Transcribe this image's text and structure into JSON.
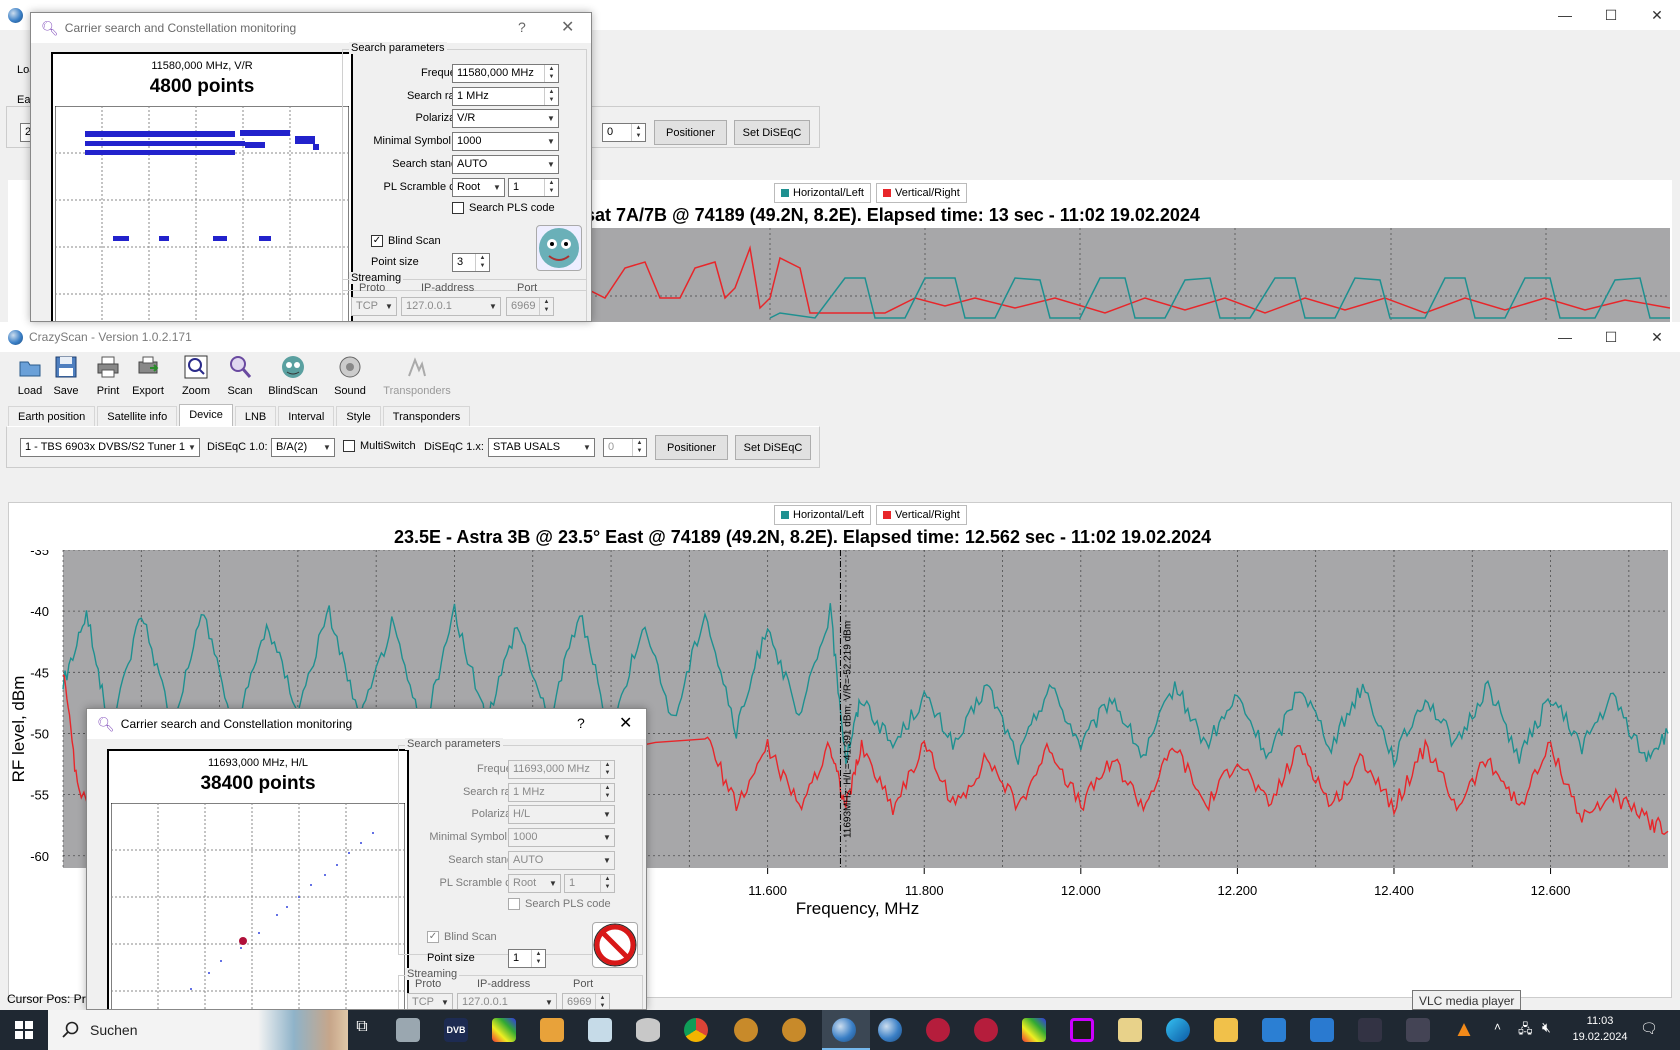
{
  "main_window": {
    "title": "CrazyScan - Version 1.0.2.171",
    "toolbar": [
      {
        "label": "Load",
        "icon": "load-icon"
      },
      {
        "label": "Save",
        "icon": "save-icon"
      },
      {
        "label": "Print",
        "icon": "print-icon"
      },
      {
        "label": "Export",
        "icon": "export-icon"
      },
      {
        "label": "Zoom",
        "icon": "zoom-icon"
      },
      {
        "label": "Scan",
        "icon": "scan-icon"
      },
      {
        "label": "BlindScan",
        "icon": "blindscan-icon"
      },
      {
        "label": "Sound",
        "icon": "sound-icon"
      },
      {
        "label": "Transponders",
        "icon": "transponders-icon",
        "disabled": true
      }
    ],
    "tabs": [
      "Earth position",
      "Satellite info",
      "Device",
      "LNB",
      "Interval",
      "Style",
      "Transponders"
    ],
    "active_tab": "Device",
    "device": {
      "tuner": "1 - TBS 6903x DVBS/S2 Tuner 1",
      "diseqc10_label": "DiSEqC 1.0:",
      "diseqc10_value": "B/A(2)",
      "multiswitch_label": "MultiSwitch",
      "diseqc1x_label": "DiSEqC 1.x:",
      "diseqc1x_value": "STAB USALS",
      "spin_value": "0",
      "positioner_label": "Positioner",
      "set_diseqc_label": "Set DiSEqC"
    },
    "legend": {
      "h": "Horizontal/Left",
      "v": "Vertical/Right",
      "h_color": "#1e9090",
      "v_color": "#e8262a"
    },
    "chart_title": "23.5E - Astra 3B @ 23.5° East @ 74189 (49.2N, 8.2E). Elapsed time: 12.562 sec - 11:02 19.02.2024",
    "status": "Cursor Pos: Pre"
  },
  "chart_data": {
    "type": "line",
    "title": "23.5E - Astra 3B @ 23.5° East @ 74189 (49.2N, 8.2E). Elapsed time: 12.562 sec - 11:02 19.02.2024",
    "xlabel": "Frequency, MHz",
    "ylabel": "RF level, dBm",
    "xlim": [
      10700,
      12750
    ],
    "ylim": [
      -61,
      -35
    ],
    "yticks": [
      -35,
      -40,
      -45,
      -50,
      -55,
      -60
    ],
    "xticks": [
      "11.600",
      "11.800",
      "12.000",
      "12.200",
      "12.400",
      "12.600"
    ],
    "xtick_values": [
      11600,
      11800,
      12000,
      12200,
      12400,
      12600
    ],
    "grid": true,
    "cursor_freq": 11693,
    "cursor_label": "11693MHz:  H/L=-41.391 dBm,  V/R=-52.219 dBm",
    "series": [
      {
        "name": "Horizontal/Left",
        "color": "#1e9090",
        "x": [
          10700,
          10730,
          10760,
          10800,
          10840,
          10880,
          10920,
          10960,
          11000,
          11040,
          11080,
          11120,
          11160,
          11200,
          11240,
          11280,
          11320,
          11360,
          11400,
          11440,
          11480,
          11520,
          11560,
          11600,
          11640,
          11680,
          11700,
          11720,
          11760,
          11800,
          11840,
          11880,
          11920,
          11960,
          12000,
          12040,
          12080,
          12120,
          12160,
          12200,
          12240,
          12280,
          12320,
          12360,
          12400,
          12440,
          12480,
          12520,
          12560,
          12600,
          12640,
          12680,
          12720,
          12750
        ],
        "y": [
          -46,
          -40,
          -50,
          -40,
          -49,
          -40,
          -50,
          -41,
          -48,
          -40,
          -49,
          -41,
          -50,
          -40,
          -49,
          -41,
          -49,
          -40,
          -50,
          -41,
          -49,
          -40,
          -50,
          -41,
          -49,
          -40,
          -52,
          -47,
          -51,
          -47,
          -51,
          -46,
          -52,
          -46,
          -51,
          -47,
          -52,
          -46,
          -51,
          -47,
          -52,
          -46,
          -51,
          -46,
          -52,
          -47,
          -51,
          -46,
          -52,
          -47,
          -51,
          -47,
          -52,
          -50
        ]
      },
      {
        "name": "Vertical/Right",
        "color": "#e8262a",
        "x": [
          10700,
          10720,
          10760,
          11520,
          11560,
          11600,
          11640,
          11680,
          11700,
          11720,
          11760,
          11800,
          11840,
          11880,
          11920,
          11960,
          12000,
          12040,
          12080,
          12120,
          12160,
          12200,
          12240,
          12280,
          12320,
          12360,
          12400,
          12440,
          12480,
          12520,
          12560,
          12600,
          12640,
          12680,
          12720,
          12750
        ],
        "y": [
          -45,
          -55,
          -58,
          -50,
          -56,
          -51,
          -56,
          -51,
          -56,
          -51,
          -56,
          -51,
          -56,
          -52,
          -56,
          -51,
          -56,
          -52,
          -56,
          -51,
          -56,
          -52,
          -56,
          -51,
          -56,
          -52,
          -56,
          -51,
          -56,
          -52,
          -56,
          -51,
          -57,
          -55,
          -57,
          -58
        ]
      }
    ]
  },
  "bg_window": {
    "chart_title_partial": "sat 7A/7B @ 74189 (49.2N, 8.2E). Elapsed time: 13 sec - 11:02 19.02.2024",
    "partial_label_1": "Loa",
    "partial_label_2": "Ea",
    "partial_label_3": "2",
    "spin_value": "0",
    "positioner_label": "Positioner",
    "set_diseqc_label": "Set DiSEqC"
  },
  "dialog_top": {
    "title": "Carrier search and Constellation monitoring",
    "help": "?",
    "freq_pol": "11580,000 MHz, V/R",
    "points": "4800 points",
    "group_title": "Search parameters",
    "fields": [
      {
        "label": "Frequency",
        "value": "11580,000 MHz",
        "kind": "spin"
      },
      {
        "label": "Search range",
        "value": "1 MHz",
        "kind": "spin"
      },
      {
        "label": "Polarization",
        "value": "V/R",
        "kind": "combo"
      },
      {
        "label": "Minimal Symbol rate",
        "value": "1000",
        "kind": "combo"
      },
      {
        "label": "Search standard",
        "value": "AUTO",
        "kind": "combo"
      }
    ],
    "pls_label": "PL Scramble code",
    "pls_mode": "Root",
    "pls_value": "1",
    "search_pls": "Search PLS code",
    "blind_scan": "Blind Scan",
    "point_size_label": "Point size",
    "point_size": "3",
    "streaming_title": "Streaming",
    "proto_label": "Proto",
    "ip_label": "IP-address",
    "port_label": "Port",
    "proto": "TCP",
    "ip": "127.0.0.1",
    "port": "6969"
  },
  "dialog_bottom": {
    "title": "Carrier search and Constellation monitoring",
    "help": "?",
    "freq_pol": "11693,000 MHz, H/L",
    "points": "38400 points",
    "group_title": "Search parameters",
    "fields": [
      {
        "label": "Frequency",
        "value": "11693,000 MHz",
        "kind": "spin"
      },
      {
        "label": "Search range",
        "value": "1 MHz",
        "kind": "spin"
      },
      {
        "label": "Polarization",
        "value": "H/L",
        "kind": "combo"
      },
      {
        "label": "Minimal Symbol rate",
        "value": "1000",
        "kind": "combo"
      },
      {
        "label": "Search standard",
        "value": "AUTO",
        "kind": "combo"
      }
    ],
    "pls_label": "PL Scramble code",
    "pls_mode": "Root",
    "pls_value": "1",
    "search_pls": "Search PLS code",
    "blind_scan": "Blind Scan",
    "point_size_label": "Point size",
    "point_size": "1",
    "streaming_title": "Streaming",
    "proto_label": "Proto",
    "ip_label": "IP-address",
    "port_label": "Port",
    "proto": "TCP",
    "ip": "127.0.0.1",
    "port": "6969"
  },
  "taskbar": {
    "search_placeholder": "Suchen",
    "time": "11:03",
    "date": "19.02.2024",
    "tooltip": "VLC media player"
  }
}
